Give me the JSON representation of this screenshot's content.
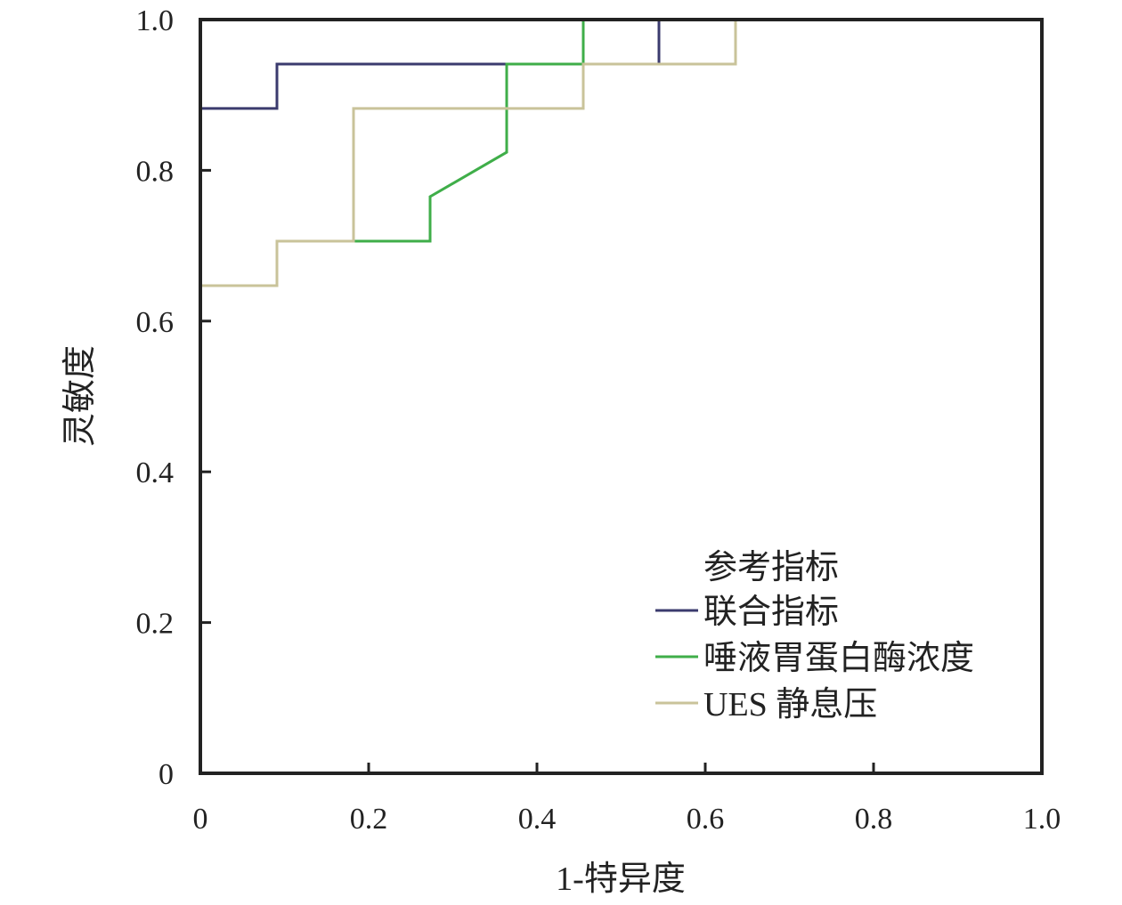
{
  "chart_data": {
    "type": "line",
    "title": "",
    "xlabel": "1-特异度",
    "ylabel": "灵敏度",
    "xlim": [
      0,
      1
    ],
    "ylim": [
      0,
      1
    ],
    "x_ticks": [
      "0",
      "0.2",
      "0.4",
      "0.6",
      "0.8",
      "1.0"
    ],
    "y_ticks": [
      "0",
      "0.2",
      "0.4",
      "0.6",
      "0.8",
      "1.0"
    ],
    "grid": false,
    "legend": {
      "title": "参考指标",
      "placement": "bottom-right"
    },
    "series": [
      {
        "name": "联合指标",
        "color": "#3b3b6e",
        "points": [
          [
            0,
            0.882
          ],
          [
            0.091,
            0.882
          ],
          [
            0.091,
            0.941
          ],
          [
            0.545,
            0.941
          ],
          [
            0.545,
            1.0
          ],
          [
            1.0,
            1.0
          ]
        ]
      },
      {
        "name": "唾液胃蛋白酶浓度",
        "color": "#3fae49",
        "points": [
          [
            0,
            0.647
          ],
          [
            0.091,
            0.647
          ],
          [
            0.091,
            0.706
          ],
          [
            0.273,
            0.706
          ],
          [
            0.273,
            0.765
          ],
          [
            0.364,
            0.824
          ],
          [
            0.364,
            0.941
          ],
          [
            0.455,
            0.941
          ],
          [
            0.455,
            1.0
          ],
          [
            1.0,
            1.0
          ]
        ]
      },
      {
        "name": "UES 静息压",
        "color": "#c9c39a",
        "points": [
          [
            0,
            0.647
          ],
          [
            0.091,
            0.647
          ],
          [
            0.091,
            0.706
          ],
          [
            0.182,
            0.706
          ],
          [
            0.182,
            0.882
          ],
          [
            0.455,
            0.882
          ],
          [
            0.455,
            0.941
          ],
          [
            0.636,
            0.941
          ],
          [
            0.636,
            1.0
          ],
          [
            1.0,
            1.0
          ]
        ]
      }
    ]
  }
}
